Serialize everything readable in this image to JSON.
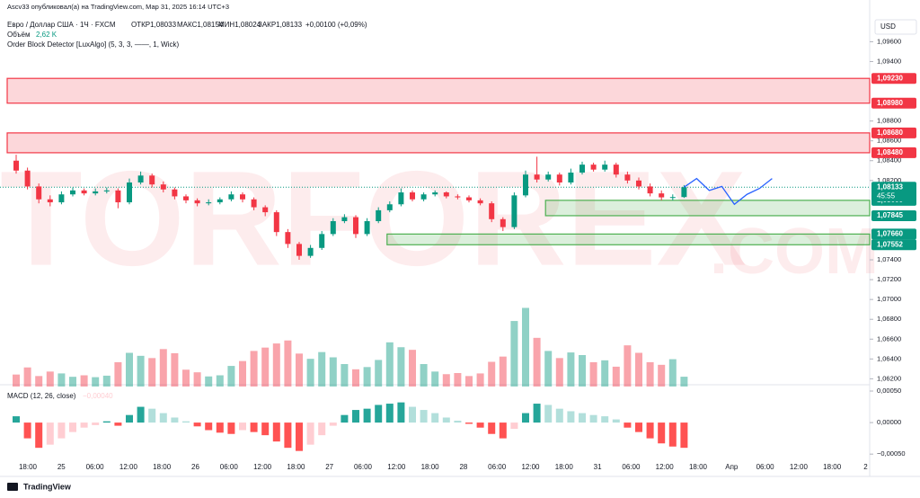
{
  "header": {
    "published": "Ascv33 опубликовал(а) на TradingView.com, Мар 31, 2025 16:14 UTC+3"
  },
  "chart_data": {
    "type": "candlestick",
    "symbol": "Евро / Доллар США · 1Ч · FXCM",
    "ohlc_labels": [
      "ОТКР1,08033",
      "МАКС1,08154",
      "МИН1,08024",
      "ЗАКР1,08133"
    ],
    "change": "+0,00100 (+0,09%)",
    "currency": "USD",
    "indicator": "Order Block Detector [LuxAlgo] (5, 3, 3, ——, 1, Wick)",
    "watermark": [
      "TORFOREX",
      ".COM"
    ],
    "up_color": "#089981",
    "down_color": "#f23645",
    "open": [
      1.084,
      1.083,
      1.0814,
      1.0801,
      1.0798,
      1.0806,
      1.081,
      1.0807,
      1.0809,
      1.081,
      1.0798,
      1.0818,
      1.0825,
      1.0816,
      1.0811,
      1.0804,
      1.08,
      1.0797,
      1.0798,
      1.0801,
      1.0806,
      1.0801,
      1.0793,
      1.0788,
      1.0768,
      1.0756,
      1.0744,
      1.0752,
      1.0766,
      1.0779,
      1.0783,
      1.0766,
      1.0779,
      1.079,
      1.0796,
      1.0808,
      1.0801,
      1.0806,
      1.0808,
      1.0804,
      1.0803,
      1.08,
      1.0797,
      1.0781,
      1.0773,
      1.0805,
      1.0826,
      1.0821,
      1.0826,
      1.0818,
      1.0828,
      1.0836,
      1.0831,
      1.0836,
      1.0826,
      1.082,
      1.0814,
      1.0807,
      1.0803,
      1.08033
    ],
    "high": [
      1.0846,
      1.0833,
      1.0817,
      1.0805,
      1.0809,
      1.0813,
      1.0812,
      1.0812,
      1.0813,
      1.0812,
      1.0822,
      1.0829,
      1.0827,
      1.0819,
      1.0813,
      1.0806,
      1.0802,
      1.0801,
      1.0803,
      1.0809,
      1.0808,
      1.0803,
      1.0795,
      1.079,
      1.0771,
      1.0758,
      1.0755,
      1.0769,
      1.0782,
      1.0786,
      1.0785,
      1.0782,
      1.0793,
      1.0799,
      1.0812,
      1.081,
      1.0808,
      1.081,
      1.0809,
      1.0806,
      1.0805,
      1.0802,
      1.0799,
      1.0783,
      1.0808,
      1.083,
      1.0844,
      1.0829,
      1.0828,
      1.0832,
      1.0839,
      1.0838,
      1.084,
      1.0838,
      1.0829,
      1.0823,
      1.0817,
      1.081,
      1.0806,
      1.08154
    ],
    "low": [
      1.0827,
      1.0811,
      1.0797,
      1.0794,
      1.0796,
      1.0804,
      1.0805,
      1.0805,
      1.0807,
      1.0792,
      1.0796,
      1.0816,
      1.0813,
      1.0808,
      1.0801,
      1.0797,
      1.0794,
      1.0795,
      1.0796,
      1.0799,
      1.0798,
      1.079,
      1.0784,
      1.0764,
      1.0752,
      1.074,
      1.0742,
      1.075,
      1.0764,
      1.0777,
      1.0762,
      1.0764,
      1.0777,
      1.0788,
      1.0794,
      1.0799,
      1.0799,
      1.0804,
      1.0802,
      1.0801,
      1.0798,
      1.0795,
      1.0778,
      1.0769,
      1.0771,
      1.0803,
      1.0818,
      1.0819,
      1.0815,
      1.0816,
      1.0826,
      1.0829,
      1.0829,
      1.0823,
      1.0817,
      1.0811,
      1.0804,
      1.08,
      1.08,
      1.08024
    ],
    "close": [
      1.083,
      1.0814,
      1.0801,
      1.0798,
      1.0806,
      1.081,
      1.0807,
      1.0809,
      1.081,
      1.0798,
      1.0818,
      1.0825,
      1.0816,
      1.0811,
      1.0804,
      1.08,
      1.0797,
      1.0798,
      1.0801,
      1.0806,
      1.0801,
      1.0793,
      1.0788,
      1.0768,
      1.0756,
      1.0744,
      1.0752,
      1.0766,
      1.0779,
      1.0783,
      1.0766,
      1.0779,
      1.079,
      1.0796,
      1.0808,
      1.0801,
      1.0806,
      1.0808,
      1.0804,
      1.0803,
      1.08,
      1.0797,
      1.0781,
      1.0773,
      1.0805,
      1.0826,
      1.0821,
      1.0826,
      1.0818,
      1.0828,
      1.0836,
      1.0831,
      1.0836,
      1.0826,
      1.082,
      1.0814,
      1.0807,
      1.0803,
      1.08033,
      1.08133
    ],
    "ylim": [
      1.0614,
      1.0993
    ],
    "yticks": [
      {
        "value": 1.096,
        "label": "1,09600"
      },
      {
        "value": 1.094,
        "label": "1,09400"
      },
      {
        "value": 1.088,
        "label": "1,08800"
      },
      {
        "value": 1.086,
        "label": "1,08600"
      },
      {
        "value": 1.084,
        "label": "1,08400"
      },
      {
        "value": 1.082,
        "label": "1,08200"
      },
      {
        "value": 1.074,
        "label": "1,07400"
      },
      {
        "value": 1.072,
        "label": "1,07200"
      },
      {
        "value": 1.07,
        "label": "1,07000"
      },
      {
        "value": 1.068,
        "label": "1,06800"
      },
      {
        "value": 1.066,
        "label": "1,06600"
      },
      {
        "value": 1.064,
        "label": "1,06400"
      },
      {
        "value": 1.062,
        "label": "1,06200"
      }
    ],
    "xticks": [
      "18:00",
      "25",
      "06:00",
      "12:00",
      "18:00",
      "26",
      "06:00",
      "12:00",
      "18:00",
      "27",
      "06:00",
      "12:00",
      "18:00",
      "28",
      "06:00",
      "12:00",
      "18:00",
      "31",
      "06:00",
      "12:00",
      "18:00",
      "Апр",
      "06:00",
      "12:00",
      "18:00",
      "2"
    ],
    "price_labels": [
      {
        "value": 1.0923,
        "label": "1,09230",
        "color": "#f23645"
      },
      {
        "value": 1.0898,
        "label": "1,08980",
        "color": "#f23645"
      },
      {
        "value": 1.0868,
        "label": "1,08680",
        "color": "#f23645"
      },
      {
        "value": 1.0848,
        "label": "1,08480",
        "color": "#f23645"
      },
      {
        "value": 1.08,
        "label": "1,08000",
        "color": "#089981"
      },
      {
        "value": 1.07845,
        "label": "1,07845",
        "color": "#089981"
      },
      {
        "value": 1.0766,
        "label": "1,07660",
        "color": "#089981"
      },
      {
        "value": 1.07552,
        "label": "1,07552",
        "color": "#089981"
      }
    ],
    "last_price": {
      "value": 1.08133,
      "label": "1,08133",
      "countdown": "45:55",
      "color": "#089981"
    },
    "order_blocks": [
      {
        "top": 1.0923,
        "bottom": 1.0898,
        "start": 0,
        "color": "#f23645"
      },
      {
        "top": 1.0868,
        "bottom": 1.0848,
        "start": 0,
        "color": "#f23645"
      },
      {
        "top": 1.08,
        "bottom": 1.07845,
        "start": 47,
        "color": "#4caf50"
      },
      {
        "top": 1.0766,
        "bottom": 1.07552,
        "start": 33,
        "color": "#4caf50"
      }
    ],
    "projection": {
      "color": "#2962ff",
      "values": [
        1.08133,
        1.0822,
        1.081,
        1.0814,
        1.0796,
        1.0806,
        1.0812,
        1.0822
      ]
    },
    "volume": {
      "name": "Объём",
      "value_label": "2,62 K",
      "ylim": [
        0,
        24
      ],
      "values": [
        3.2,
        5.1,
        2.8,
        4.0,
        3.5,
        2.6,
        3.0,
        2.5,
        2.9,
        6.5,
        9.0,
        8.2,
        7.6,
        10.0,
        8.9,
        4.5,
        3.8,
        2.7,
        3.0,
        5.5,
        6.8,
        9.5,
        10.4,
        11.5,
        12.3,
        8.8,
        7.4,
        9.2,
        7.8,
        6.0,
        4.6,
        5.2,
        7.1,
        11.8,
        10.5,
        9.8,
        6.0,
        4.0,
        3.3,
        3.6,
        2.8,
        3.5,
        6.6,
        8.0,
        17.5,
        21.0,
        13.0,
        9.5,
        7.6,
        9.1,
        8.4,
        6.5,
        7.0,
        5.3,
        11.0,
        9.0,
        6.5,
        5.8,
        7.3,
        2.62
      ]
    },
    "macd": {
      "name": "MACD (12, 26, close)",
      "value_label": "−0,00040",
      "ylim": [
        -0.00064,
        0.0006
      ],
      "yticks": [
        {
          "value": 0.0005,
          "label": "0,00050"
        },
        {
          "value": 0,
          "label": "0,00000"
        },
        {
          "value": -0.0005,
          "label": "−0,00050"
        }
      ],
      "colors": {
        "up_rising": "#26a69a",
        "up_falling": "#b2dfdb",
        "down_falling": "#ff5252",
        "down_rising": "#ffcdd2"
      },
      "values": [
        0.0001,
        -0.00025,
        -0.0004,
        -0.00035,
        -0.00025,
        -0.00015,
        -8e-05,
        -4e-05,
        2e-05,
        -5e-05,
        0.00012,
        0.00025,
        0.00022,
        0.00015,
        8e-05,
        2e-05,
        -6e-05,
        -0.00012,
        -0.00016,
        -0.00018,
        -0.00012,
        -0.00015,
        -0.0002,
        -0.0003,
        -0.0004,
        -0.00045,
        -0.00035,
        -0.0002,
        -5e-05,
        0.00012,
        0.0002,
        0.00022,
        0.00028,
        0.0003,
        0.00032,
        0.00025,
        0.0002,
        0.00015,
        8e-05,
        3e-05,
        -2e-05,
        -8e-05,
        -0.00018,
        -0.00025,
        -0.0001,
        0.00015,
        0.0003,
        0.00028,
        0.00022,
        0.00018,
        0.00015,
        0.00012,
        0.0001,
        5e-05,
        -8e-05,
        -0.00015,
        -0.00025,
        -0.00033,
        -0.00038,
        -0.0004
      ]
    },
    "logo": "TradingView"
  }
}
